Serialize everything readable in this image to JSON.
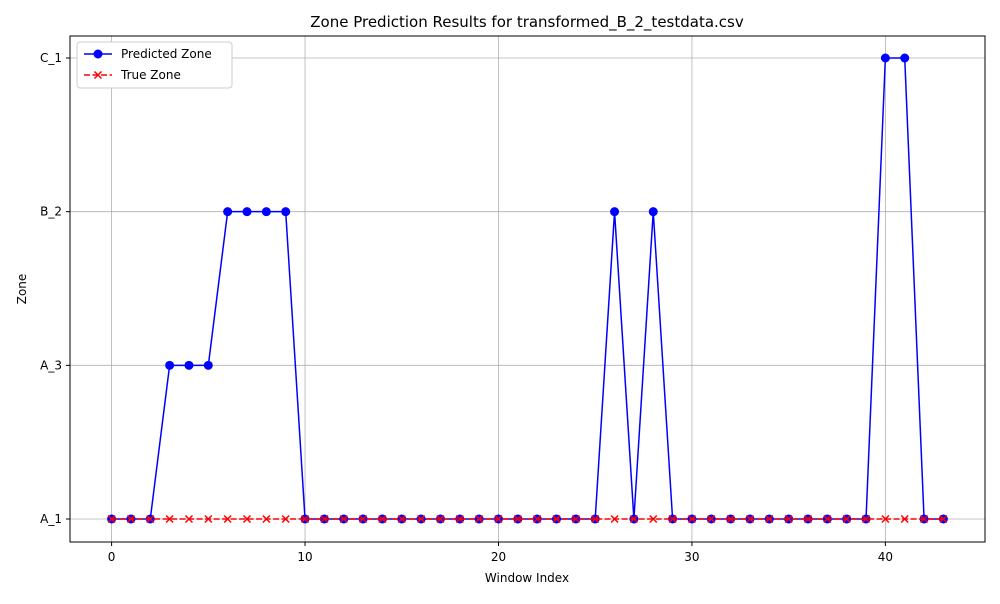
{
  "chart_data": {
    "type": "line",
    "title": "Zone Prediction Results for transformed_B_2_testdata.csv",
    "xlabel": "Window Index",
    "ylabel": "Zone",
    "xlim": [
      -2.15,
      45.15
    ],
    "x_ticks": [
      0,
      10,
      20,
      30,
      40
    ],
    "y_categories": [
      "A_1",
      "A_3",
      "B_2",
      "C_1"
    ],
    "grid": true,
    "legend_position": "upper-left",
    "x": [
      0,
      1,
      2,
      3,
      4,
      5,
      6,
      7,
      8,
      9,
      10,
      11,
      12,
      13,
      14,
      15,
      16,
      17,
      18,
      19,
      20,
      21,
      22,
      23,
      24,
      25,
      26,
      27,
      28,
      29,
      30,
      31,
      32,
      33,
      34,
      35,
      36,
      37,
      38,
      39,
      40,
      41,
      42,
      43
    ],
    "series": [
      {
        "name": "Predicted Zone",
        "color": "#0000ff",
        "marker": "circle",
        "line_style": "solid",
        "values": [
          "A_1",
          "A_1",
          "A_1",
          "A_3",
          "A_3",
          "A_3",
          "B_2",
          "B_2",
          "B_2",
          "B_2",
          "A_1",
          "A_1",
          "A_1",
          "A_1",
          "A_1",
          "A_1",
          "A_1",
          "A_1",
          "A_1",
          "A_1",
          "A_1",
          "A_1",
          "A_1",
          "A_1",
          "A_1",
          "A_1",
          "B_2",
          "A_1",
          "B_2",
          "A_1",
          "A_1",
          "A_1",
          "A_1",
          "A_1",
          "A_1",
          "A_1",
          "A_1",
          "A_1",
          "A_1",
          "A_1",
          "C_1",
          "C_1",
          "A_1",
          "A_1"
        ]
      },
      {
        "name": "True Zone",
        "color": "#ff0000",
        "marker": "x",
        "line_style": "dashed",
        "values": [
          "A_1",
          "A_1",
          "A_1",
          "A_1",
          "A_1",
          "A_1",
          "A_1",
          "A_1",
          "A_1",
          "A_1",
          "A_1",
          "A_1",
          "A_1",
          "A_1",
          "A_1",
          "A_1",
          "A_1",
          "A_1",
          "A_1",
          "A_1",
          "A_1",
          "A_1",
          "A_1",
          "A_1",
          "A_1",
          "A_1",
          "A_1",
          "A_1",
          "A_1",
          "A_1",
          "A_1",
          "A_1",
          "A_1",
          "A_1",
          "A_1",
          "A_1",
          "A_1",
          "A_1",
          "A_1",
          "A_1",
          "A_1",
          "A_1",
          "A_1",
          "A_1"
        ]
      }
    ]
  }
}
